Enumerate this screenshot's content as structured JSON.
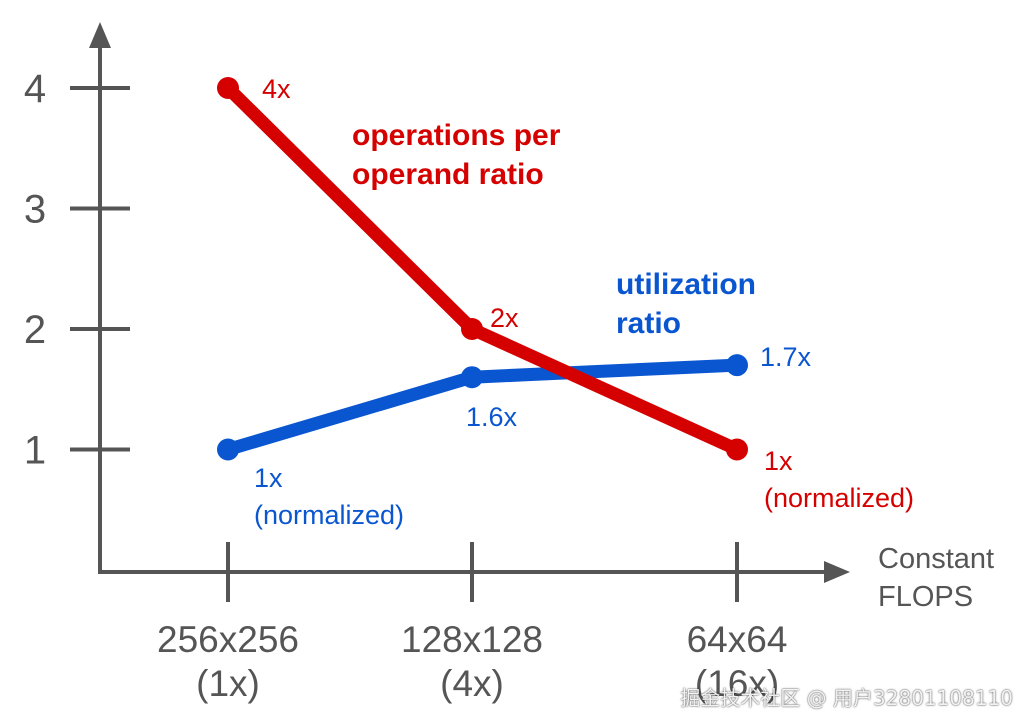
{
  "chart_data": {
    "type": "line",
    "categories": [
      "256x256\n(1x)",
      "128x128\n(4x)",
      "64x64\n(16x)"
    ],
    "xlabel": "Constant\nFLOPS",
    "ylabel": "",
    "yticks": [
      1,
      2,
      3,
      4
    ],
    "ylim": [
      0,
      4.4
    ],
    "grid": false,
    "series": [
      {
        "name": "operations per\noperand ratio",
        "color": "#d50000",
        "values": [
          4,
          2,
          1
        ],
        "point_labels": [
          "4x",
          "2x",
          "1x\n(normalized)"
        ]
      },
      {
        "name": "utilization\nratio",
        "color": "#0a56d0",
        "values": [
          1,
          1.6,
          1.7
        ],
        "point_labels": [
          "1x\n(normalized)",
          "1.6x",
          "1.7x"
        ]
      }
    ]
  },
  "colors": {
    "axis": "#555555",
    "text": "#555555"
  },
  "watermark": "掘金技术社区 @ 用户3280110811​0"
}
